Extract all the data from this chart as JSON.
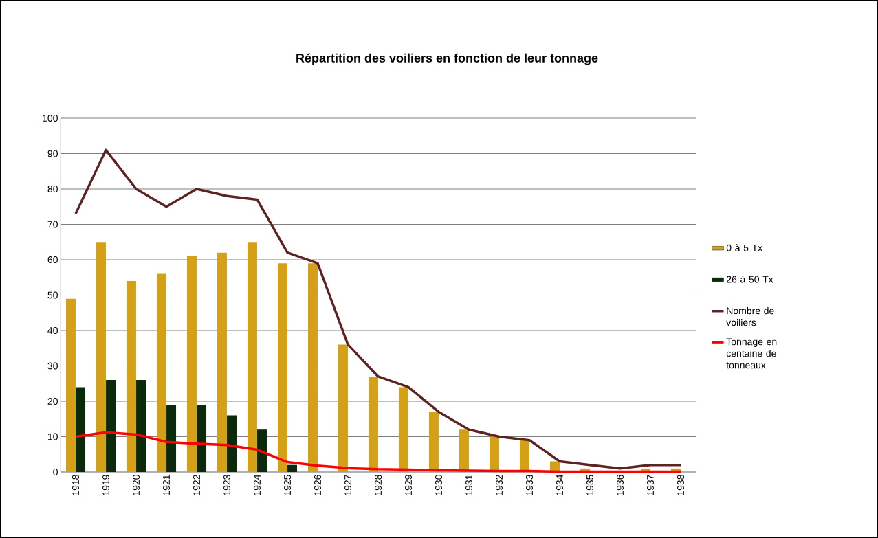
{
  "chart_data": {
    "type": "bar",
    "title": "Répartition des voiliers en fonction de leur tonnage",
    "categories": [
      "1918",
      "1919",
      "1920",
      "1921",
      "1922",
      "1923",
      "1924",
      "1925",
      "1926",
      "1927",
      "1928",
      "1929",
      "1930",
      "1931",
      "1932",
      "1933",
      "1934",
      "1935",
      "1936",
      "1937",
      "1938"
    ],
    "series": [
      {
        "name": "0 à 5 Tx",
        "color": "#d4a017",
        "values": [
          49,
          65,
          54,
          56,
          61,
          62,
          65,
          59,
          59,
          36,
          27,
          24,
          17,
          12,
          10,
          9,
          3,
          1,
          0,
          1,
          1
        ]
      },
      {
        "name": "26 à 50 Tx",
        "color": "#0b2a0b",
        "values": [
          24,
          26,
          26,
          19,
          19,
          16,
          12,
          2,
          0,
          0,
          0,
          0,
          0,
          0,
          0,
          0,
          0,
          0,
          0,
          0,
          0
        ]
      },
      {
        "name": "Nombre de voiliers",
        "type": "line",
        "color": "#5e2222",
        "values": [
          73,
          91,
          80,
          75,
          80,
          78,
          77,
          62,
          59,
          36,
          27,
          24,
          17,
          12,
          10,
          9,
          3,
          2,
          1,
          2,
          2
        ]
      },
      {
        "name": "Tonnage en centaine de tonneaux",
        "type": "line",
        "color": "#ff0000",
        "values": [
          10,
          11.2,
          10.6,
          8.5,
          8,
          7.6,
          6.3,
          2.8,
          1.8,
          1.1,
          0.8,
          0.7,
          0.5,
          0.4,
          0.3,
          0.3,
          0.1,
          0.1,
          0.1,
          0.1,
          0.1
        ]
      }
    ],
    "ylim": [
      0,
      100
    ],
    "yticks": [
      0,
      10,
      20,
      30,
      40,
      50,
      60,
      70,
      80,
      90,
      100
    ],
    "grid": "y",
    "legend": "right"
  }
}
